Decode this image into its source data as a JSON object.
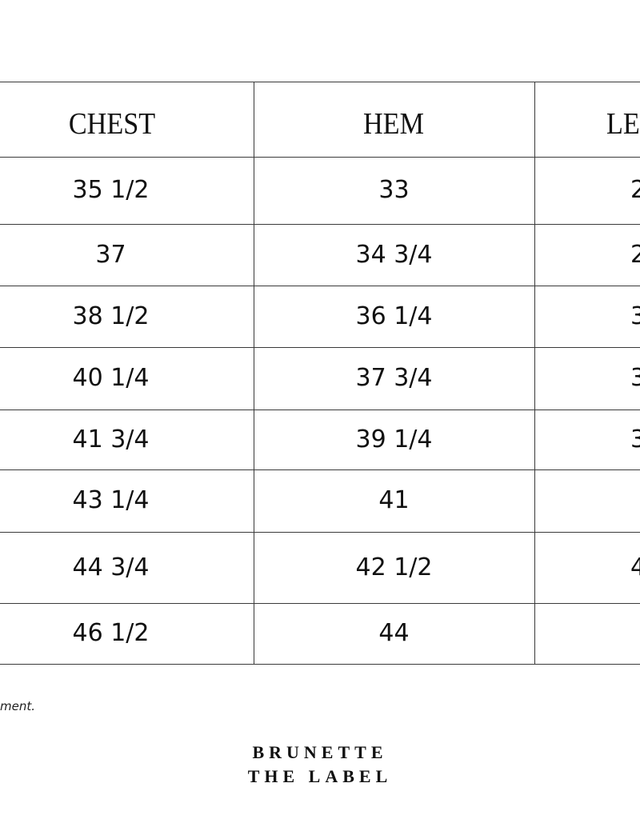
{
  "table": {
    "headers": [
      "CHEST",
      "HEM",
      "LE"
    ],
    "rows": [
      {
        "chest": "35 1/2",
        "hem": "33",
        "third_partial": "2"
      },
      {
        "chest": "37",
        "hem": "34 3/4",
        "third_partial": "2"
      },
      {
        "chest": "38 1/2",
        "hem": "36 1/4",
        "third_partial": "3"
      },
      {
        "chest": "40 1/4",
        "hem": "37 3/4",
        "third_partial": "3"
      },
      {
        "chest": "41 3/4",
        "hem": "39 1/4",
        "third_partial": "3"
      },
      {
        "chest": "43 1/4",
        "hem": "41",
        "third_partial": ""
      },
      {
        "chest": "44 3/4",
        "hem": "42 1/2",
        "third_partial": "4"
      },
      {
        "chest": "46 1/2",
        "hem": "44",
        "third_partial": ""
      }
    ]
  },
  "footnote": "ment.",
  "logo": {
    "line1": "BRUNETTE",
    "line2": "THE LABEL"
  }
}
